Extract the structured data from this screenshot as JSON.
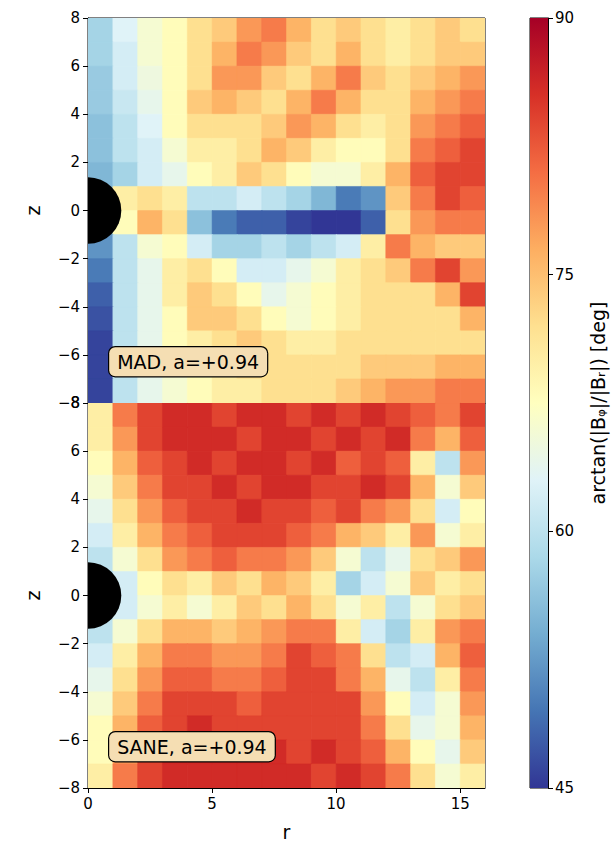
{
  "chart_data": [
    {
      "type": "heatmap",
      "annotation": "MAD, a=+0.94",
      "ylabel": "z",
      "xlim": [
        0,
        16
      ],
      "xticks": [
        0,
        5,
        10,
        15
      ],
      "ylim": [
        -8,
        8
      ],
      "yticks": [
        {
          "value": -8,
          "label": "−8"
        },
        {
          "value": -6,
          "label": "−6"
        },
        {
          "value": -4,
          "label": "−4"
        },
        {
          "value": -2,
          "label": "−2"
        },
        0,
        2,
        4,
        6,
        8
      ],
      "grid": false,
      "tick_labels": "y",
      "horizon_radius": 1.34,
      "colorbar": {
        "range": [
          45,
          90
        ],
        "ticks": [
          45,
          60,
          75,
          90
        ],
        "label": "arctan(|Bᵩ|/|Bᵣ|) [deg]"
      },
      "r_edges": [
        0,
        1,
        2,
        3,
        4,
        5,
        6,
        7,
        8,
        9,
        10,
        11,
        12,
        13,
        14,
        15,
        16
      ],
      "z_edges": [
        8,
        7,
        6,
        5,
        4,
        3,
        2,
        1,
        0,
        -1,
        -2,
        -3,
        -4,
        -5,
        -6,
        -7,
        -8
      ],
      "cells": [
        [
          58,
          63,
          66,
          68,
          72,
          74,
          78,
          80,
          76,
          72,
          74,
          72,
          70,
          72,
          74,
          72
        ],
        [
          58,
          62,
          66,
          68,
          72,
          76,
          80,
          78,
          74,
          72,
          76,
          72,
          70,
          72,
          74,
          74
        ],
        [
          57,
          62,
          65,
          68,
          72,
          78,
          78,
          74,
          72,
          76,
          80,
          74,
          72,
          74,
          76,
          78
        ],
        [
          57,
          61,
          64,
          68,
          74,
          76,
          74,
          72,
          76,
          80,
          76,
          72,
          72,
          76,
          78,
          80
        ],
        [
          56,
          60,
          63,
          68,
          72,
          72,
          72,
          74,
          78,
          76,
          72,
          70,
          72,
          78,
          80,
          82
        ],
        [
          56,
          60,
          62,
          66,
          70,
          70,
          72,
          76,
          74,
          70,
          68,
          68,
          72,
          80,
          82,
          84
        ],
        [
          55,
          58,
          62,
          64,
          68,
          70,
          74,
          72,
          68,
          66,
          66,
          70,
          76,
          82,
          84,
          84
        ],
        [
          55,
          70,
          72,
          70,
          60,
          60,
          62,
          60,
          58,
          55,
          50,
          52,
          74,
          80,
          84,
          82
        ],
        [
          54,
          68,
          76,
          72,
          56,
          50,
          48,
          48,
          46,
          45,
          45,
          48,
          72,
          78,
          80,
          80
        ],
        [
          52,
          60,
          66,
          68,
          62,
          58,
          58,
          60,
          58,
          60,
          62,
          70,
          80,
          76,
          74,
          74
        ],
        [
          50,
          60,
          64,
          70,
          72,
          68,
          62,
          62,
          64,
          66,
          70,
          72,
          74,
          80,
          84,
          78
        ],
        [
          48,
          60,
          64,
          70,
          74,
          72,
          68,
          64,
          66,
          68,
          70,
          72,
          72,
          72,
          76,
          84
        ],
        [
          47,
          60,
          64,
          68,
          74,
          74,
          72,
          68,
          66,
          68,
          70,
          72,
          72,
          72,
          72,
          76
        ],
        [
          46,
          60,
          64,
          68,
          70,
          72,
          74,
          72,
          70,
          70,
          72,
          72,
          72,
          72,
          72,
          72
        ],
        [
          46,
          60,
          64,
          66,
          68,
          70,
          72,
          72,
          72,
          72,
          72,
          74,
          74,
          74,
          76,
          76
        ],
        [
          46,
          60,
          64,
          66,
          68,
          70,
          70,
          72,
          72,
          72,
          74,
          76,
          78,
          78,
          80,
          80
        ]
      ]
    },
    {
      "type": "heatmap",
      "annotation": "SANE, a=+0.94",
      "xlabel": "r",
      "ylabel": "z",
      "xlim": [
        0,
        16
      ],
      "xticks": [
        0,
        5,
        10,
        15
      ],
      "ylim": [
        -8,
        8
      ],
      "yticks": [
        {
          "value": -8,
          "label": "−8"
        },
        {
          "value": -6,
          "label": "−6"
        },
        {
          "value": -4,
          "label": "−4"
        },
        {
          "value": -2,
          "label": "−2"
        },
        0,
        2,
        4,
        6,
        8
      ],
      "grid": false,
      "horizon_radius": 1.34,
      "r_edges": [
        0,
        1,
        2,
        3,
        4,
        5,
        6,
        7,
        8,
        9,
        10,
        11,
        12,
        13,
        14,
        15,
        16
      ],
      "z_edges": [
        8,
        7,
        6,
        5,
        4,
        3,
        2,
        1,
        0,
        -1,
        -2,
        -3,
        -4,
        -5,
        -6,
        -7,
        -8
      ],
      "cells": [
        [
          70,
          80,
          84,
          86,
          86,
          84,
          86,
          86,
          84,
          86,
          84,
          86,
          84,
          82,
          80,
          84
        ],
        [
          70,
          78,
          84,
          86,
          86,
          86,
          84,
          86,
          86,
          84,
          86,
          84,
          86,
          80,
          76,
          82
        ],
        [
          68,
          76,
          82,
          84,
          86,
          84,
          86,
          86,
          84,
          86,
          82,
          84,
          82,
          70,
          60,
          78
        ],
        [
          66,
          74,
          80,
          84,
          84,
          86,
          84,
          86,
          86,
          84,
          84,
          86,
          84,
          76,
          66,
          74
        ],
        [
          64,
          72,
          78,
          82,
          84,
          84,
          86,
          84,
          84,
          82,
          84,
          80,
          78,
          72,
          62,
          68
        ],
        [
          62,
          70,
          76,
          80,
          82,
          84,
          84,
          84,
          82,
          80,
          76,
          74,
          70,
          78,
          66,
          70
        ],
        [
          60,
          66,
          72,
          78,
          80,
          82,
          80,
          80,
          78,
          74,
          66,
          60,
          64,
          72,
          74,
          78
        ],
        [
          58,
          62,
          68,
          72,
          70,
          74,
          72,
          76,
          74,
          70,
          58,
          62,
          66,
          74,
          70,
          72
        ],
        [
          58,
          62,
          66,
          70,
          66,
          70,
          74,
          72,
          76,
          72,
          66,
          70,
          60,
          66,
          72,
          74
        ],
        [
          60,
          66,
          72,
          76,
          76,
          74,
          76,
          78,
          80,
          80,
          70,
          62,
          58,
          70,
          78,
          80
        ],
        [
          62,
          70,
          76,
          80,
          80,
          78,
          78,
          80,
          84,
          82,
          80,
          72,
          60,
          62,
          76,
          82
        ],
        [
          64,
          72,
          78,
          82,
          82,
          80,
          80,
          82,
          84,
          84,
          80,
          76,
          64,
          60,
          70,
          80
        ],
        [
          66,
          74,
          80,
          84,
          84,
          84,
          82,
          84,
          84,
          84,
          84,
          78,
          68,
          62,
          66,
          78
        ],
        [
          68,
          76,
          82,
          84,
          86,
          84,
          84,
          84,
          84,
          84,
          84,
          80,
          72,
          64,
          66,
          76
        ],
        [
          68,
          78,
          84,
          86,
          86,
          86,
          86,
          86,
          84,
          86,
          84,
          82,
          76,
          68,
          64,
          74
        ],
        [
          70,
          80,
          84,
          86,
          86,
          86,
          86,
          86,
          86,
          84,
          86,
          84,
          80,
          72,
          66,
          70
        ]
      ]
    }
  ]
}
